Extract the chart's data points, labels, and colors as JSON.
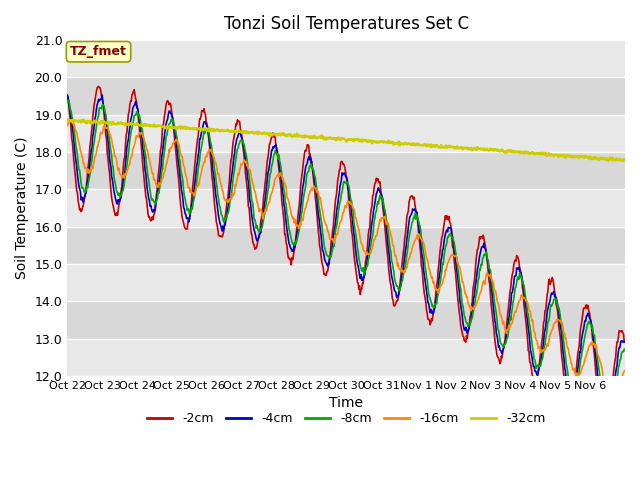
{
  "title": "Tonzi Soil Temperatures Set C",
  "xlabel": "Time",
  "ylabel": "Soil Temperature (C)",
  "ylim": [
    12.0,
    21.0
  ],
  "yticks": [
    12.0,
    13.0,
    14.0,
    15.0,
    16.0,
    17.0,
    18.0,
    19.0,
    20.0,
    21.0
  ],
  "xtick_labels": [
    "Oct 22",
    "Oct 23",
    "Oct 24",
    "Oct 25",
    "Oct 26",
    "Oct 27",
    "Oct 28",
    "Oct 29",
    "Oct 30",
    "Oct 31",
    "Nov 1",
    "Nov 2",
    "Nov 3",
    "Nov 4",
    "Nov 5",
    "Nov 6"
  ],
  "colors": {
    "-2cm": "#cc0000",
    "-4cm": "#0000cc",
    "-8cm": "#00aa00",
    "-16cm": "#ff8800",
    "-32cm": "#cccc00"
  },
  "legend_labels": [
    "-2cm",
    "-4cm",
    "-8cm",
    "-16cm",
    "-32cm"
  ],
  "annotation_text": "TZ_fmet",
  "annotation_box_color": "#ffffcc",
  "annotation_text_color": "#880000",
  "plot_bg_light": "#e8e8e8",
  "plot_bg_dark": "#d8d8d8",
  "n_days": 16,
  "points_per_day": 48,
  "figsize": [
    6.4,
    4.8
  ],
  "dpi": 100
}
